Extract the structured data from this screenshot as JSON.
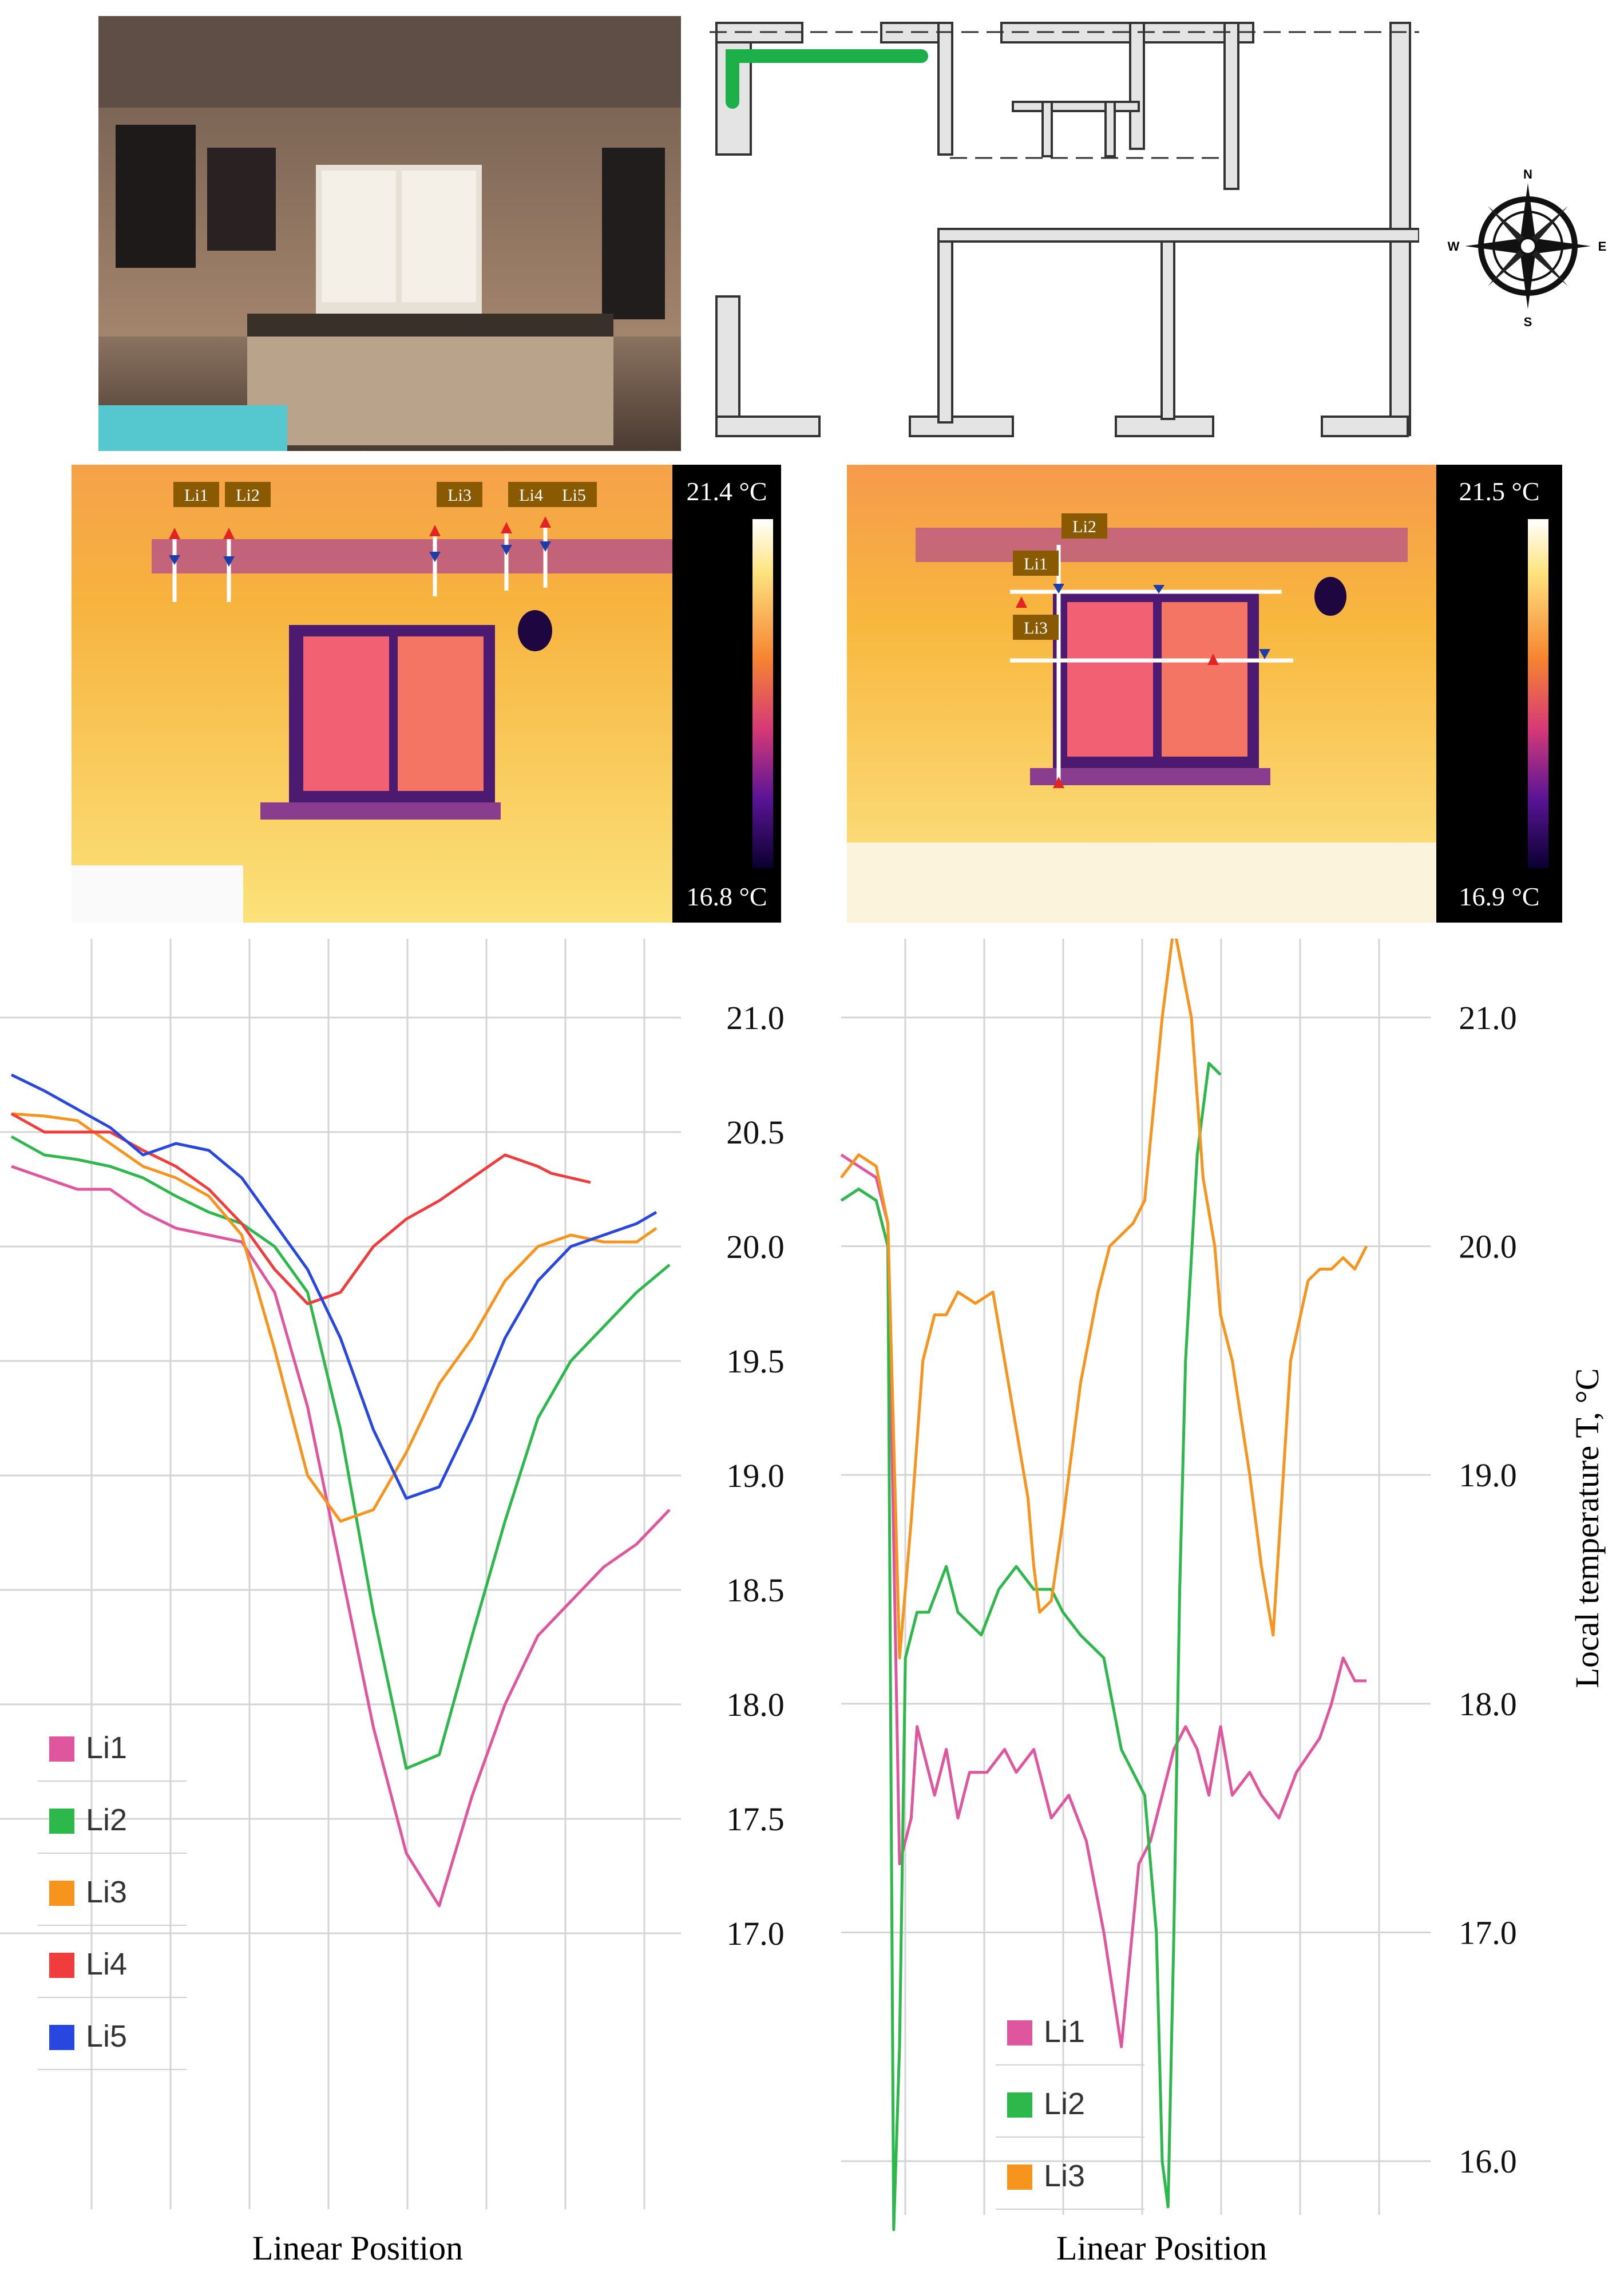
{
  "compass": {
    "n": "N",
    "s": "S",
    "e": "E",
    "w": "W"
  },
  "thermal_left": {
    "scale_max": "21.4 °C",
    "scale_min": "16.8 °C",
    "line_labels": [
      "Li1",
      "Li2",
      "Li3",
      "Li4",
      "Li5"
    ]
  },
  "thermal_right": {
    "scale_max": "21.5 °C",
    "scale_min": "16.9 °C",
    "line_labels": [
      "Li1",
      "Li2",
      "Li3"
    ]
  },
  "colors": {
    "Li1": "#e0569e",
    "Li2": "#2db84b",
    "Li3": "#f7941d",
    "Li4": "#f03c3c",
    "Li5": "#2847e0",
    "plan_highlight": "#1db04a"
  },
  "chart_data": [
    {
      "type": "line",
      "title": "",
      "xlabel": "Linear Position",
      "ylabel": "",
      "ylim": [
        16.8,
        21.3
      ],
      "yticks": [
        "21.0",
        "20.5",
        "20.0",
        "19.5",
        "19.0",
        "18.5",
        "18.0",
        "17.5",
        "17.0"
      ],
      "grid": true,
      "legend": "bottom-left",
      "series": [
        {
          "name": "Li1",
          "x": [
            0,
            5,
            10,
            15,
            20,
            25,
            30,
            35,
            40,
            45,
            50,
            55,
            60,
            65,
            70,
            75,
            80,
            85,
            90,
            95,
            100
          ],
          "values": [
            20.35,
            20.3,
            20.25,
            20.25,
            20.15,
            20.08,
            20.05,
            20.02,
            19.8,
            19.3,
            18.6,
            17.9,
            17.35,
            17.12,
            17.6,
            18.0,
            18.3,
            18.45,
            18.6,
            18.7,
            18.85
          ]
        },
        {
          "name": "Li2",
          "x": [
            0,
            5,
            10,
            15,
            20,
            25,
            30,
            35,
            40,
            45,
            50,
            55,
            60,
            65,
            70,
            75,
            80,
            85,
            90,
            95,
            100
          ],
          "values": [
            20.48,
            20.4,
            20.38,
            20.35,
            20.3,
            20.22,
            20.15,
            20.1,
            20.0,
            19.8,
            19.2,
            18.4,
            17.72,
            17.78,
            18.3,
            18.8,
            19.25,
            19.5,
            19.65,
            19.8,
            19.92
          ]
        },
        {
          "name": "Li3",
          "x": [
            0,
            5,
            10,
            15,
            20,
            25,
            30,
            35,
            40,
            45,
            50,
            55,
            60,
            65,
            70,
            75,
            80,
            85,
            90,
            95,
            98
          ],
          "values": [
            20.58,
            20.57,
            20.55,
            20.45,
            20.35,
            20.3,
            20.22,
            20.05,
            19.55,
            19.0,
            18.8,
            18.85,
            19.1,
            19.4,
            19.6,
            19.85,
            20.0,
            20.05,
            20.02,
            20.02,
            20.08
          ]
        },
        {
          "name": "Li4",
          "x": [
            0,
            5,
            10,
            15,
            20,
            25,
            30,
            35,
            40,
            45,
            50,
            55,
            60,
            65,
            70,
            75,
            80,
            82,
            88
          ],
          "values": [
            20.58,
            20.5,
            20.5,
            20.5,
            20.42,
            20.35,
            20.25,
            20.1,
            19.9,
            19.75,
            19.8,
            20.0,
            20.12,
            20.2,
            20.3,
            20.4,
            20.35,
            20.32,
            20.28
          ]
        },
        {
          "name": "Li5",
          "x": [
            0,
            5,
            10,
            15,
            20,
            25,
            30,
            35,
            40,
            45,
            50,
            55,
            60,
            65,
            70,
            75,
            80,
            85,
            90,
            95,
            98
          ],
          "values": [
            20.75,
            20.68,
            20.6,
            20.52,
            20.4,
            20.45,
            20.42,
            20.3,
            20.1,
            19.9,
            19.6,
            19.2,
            18.9,
            18.95,
            19.25,
            19.6,
            19.85,
            20.0,
            20.05,
            20.1,
            20.15
          ]
        }
      ]
    },
    {
      "type": "line",
      "title": "",
      "xlabel": "Linear Position",
      "ylabel": "Local temperature T, °C",
      "ylim": [
        15.7,
        21.3
      ],
      "yticks": [
        "21.0",
        "20.0",
        "19.0",
        "18.0",
        "17.0",
        "16.0"
      ],
      "grid": true,
      "legend": "bottom-left",
      "series": [
        {
          "name": "Li1",
          "x": [
            0,
            3,
            6,
            8,
            10,
            12,
            13,
            14,
            15,
            16,
            18,
            20,
            22,
            25,
            28,
            30,
            33,
            36,
            39,
            42,
            45,
            48,
            51,
            53,
            55,
            57,
            59,
            61,
            63,
            65,
            67,
            70,
            72,
            75,
            78,
            82,
            84,
            86,
            88,
            90
          ],
          "values": [
            20.4,
            20.35,
            20.3,
            20.1,
            17.3,
            17.5,
            17.9,
            17.8,
            17.7,
            17.6,
            17.8,
            17.5,
            17.7,
            17.7,
            17.8,
            17.7,
            17.8,
            17.5,
            17.6,
            17.4,
            17.0,
            16.5,
            17.3,
            17.4,
            17.6,
            17.8,
            17.9,
            17.8,
            17.6,
            17.9,
            17.6,
            17.7,
            17.6,
            17.5,
            17.7,
            17.85,
            18.0,
            18.2,
            18.1,
            18.1
          ]
        },
        {
          "name": "Li2",
          "x": [
            0,
            3,
            6,
            8,
            9,
            10,
            11,
            12,
            13,
            15,
            18,
            20,
            24,
            27,
            30,
            33,
            36,
            38,
            41,
            45,
            48,
            52,
            54,
            55,
            56,
            57,
            58,
            59,
            61,
            63,
            65
          ],
          "values": [
            20.2,
            20.25,
            20.2,
            20.0,
            15.7,
            16.5,
            18.2,
            18.3,
            18.4,
            18.4,
            18.6,
            18.4,
            18.3,
            18.5,
            18.6,
            18.5,
            18.5,
            18.4,
            18.3,
            18.2,
            17.8,
            17.6,
            17.0,
            16.0,
            15.8,
            17.0,
            18.5,
            19.5,
            20.4,
            20.8,
            20.75
          ]
        },
        {
          "name": "Li3",
          "x": [
            0,
            3,
            6,
            8,
            10,
            12,
            14,
            16,
            18,
            20,
            23,
            26,
            28,
            30,
            32,
            33,
            34,
            36,
            38,
            41,
            44,
            46,
            48,
            50,
            52,
            55,
            57,
            60,
            62,
            64,
            65,
            67,
            70,
            72,
            74,
            77,
            80,
            82,
            84,
            86,
            88,
            90
          ],
          "values": [
            20.3,
            20.4,
            20.35,
            20.1,
            18.2,
            18.8,
            19.5,
            19.7,
            19.7,
            19.8,
            19.75,
            19.8,
            19.5,
            19.2,
            18.9,
            18.6,
            18.4,
            18.45,
            18.8,
            19.4,
            19.8,
            20.0,
            20.05,
            20.1,
            20.2,
            21.0,
            21.4,
            21.0,
            20.3,
            20.0,
            19.7,
            19.5,
            19.0,
            18.6,
            18.3,
            19.5,
            19.85,
            19.9,
            19.9,
            19.95,
            19.9,
            20.0
          ]
        }
      ]
    }
  ]
}
